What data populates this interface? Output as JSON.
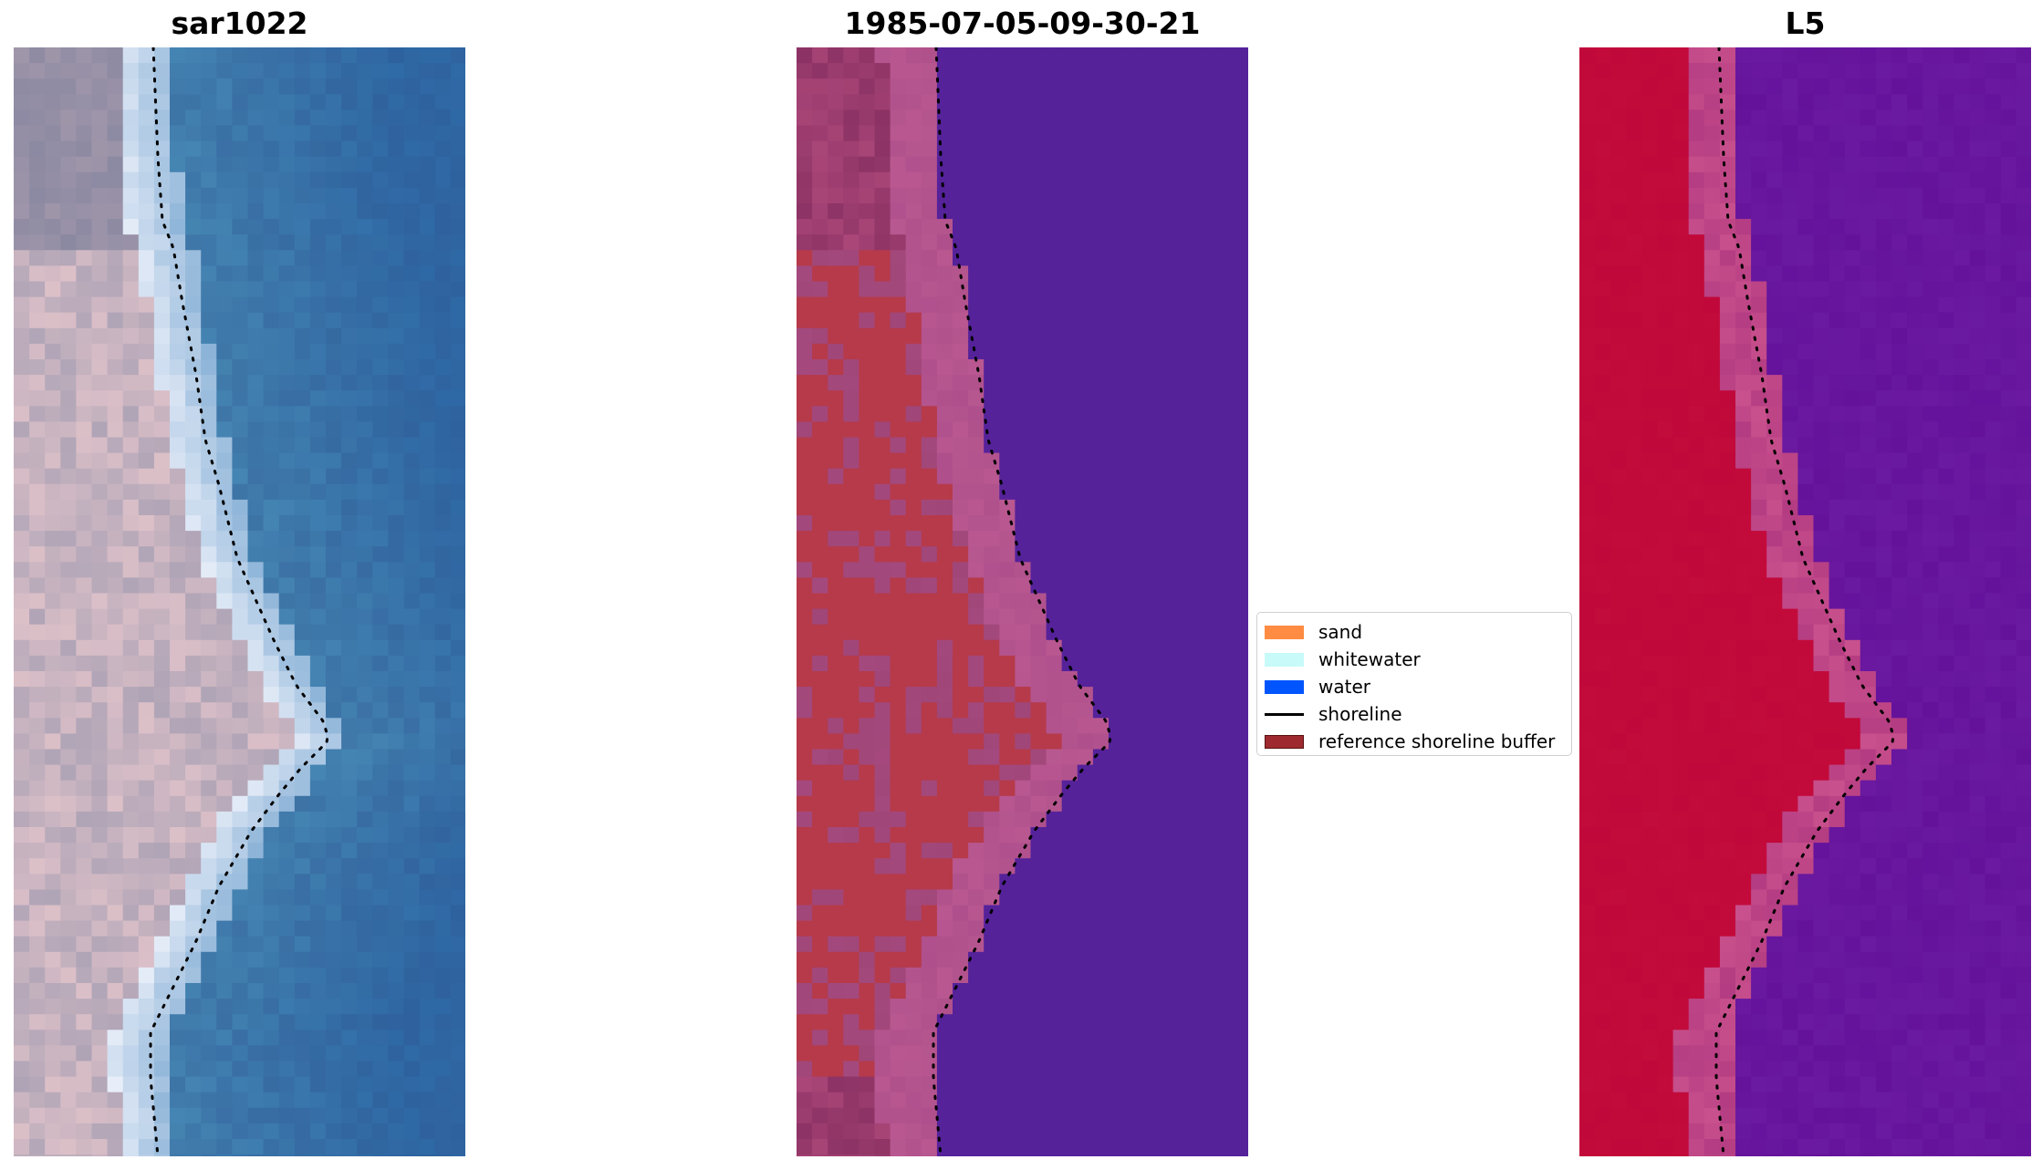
{
  "figure": {
    "panels": [
      {
        "title": "sar1022",
        "content": "rgb"
      },
      {
        "title": "1985-07-05-09-30-21",
        "content": "classification"
      },
      {
        "title": "L5",
        "content": "mndwi"
      }
    ],
    "legend": {
      "placement": "center",
      "entries": [
        {
          "label": "sand",
          "kind": "patch",
          "color": "#ff8c42"
        },
        {
          "label": "whitewater",
          "kind": "patch",
          "color": "#c8fafa"
        },
        {
          "label": "water",
          "kind": "patch",
          "color": "#0055ff"
        },
        {
          "label": "shoreline",
          "kind": "line",
          "color": "#000000"
        },
        {
          "label": "reference shoreline buffer",
          "kind": "patch",
          "color": "#9e2a2f"
        }
      ]
    },
    "colors": {
      "water_rgb": "#2f6aa6",
      "sand_rgb": "#dcc0c8",
      "classified_water": "#55229a",
      "buffer": "#b63a4a",
      "mndwi_land": "#c0083a",
      "mndwi_water": "#6a1aa0",
      "shoreline": "#000000"
    }
  }
}
